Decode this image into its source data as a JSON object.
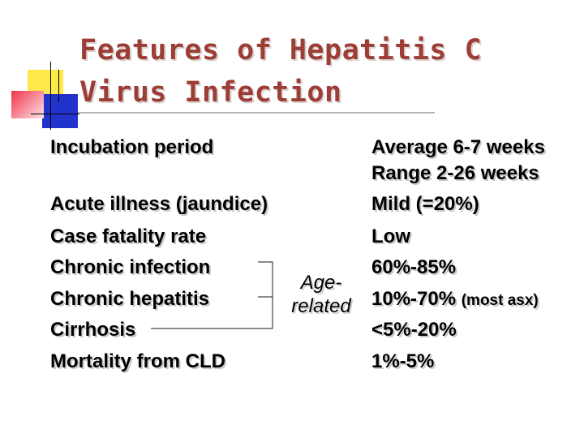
{
  "title_line1": "Features of Hepatitis C",
  "title_line2": "Virus Infection",
  "rows": [
    {
      "label": "Incubation period",
      "value": "Average 6-7 weeks"
    },
    {
      "label": "",
      "value": "Range 2-26 weeks"
    },
    {
      "label": "Acute illness (jaundice)",
      "value": "Mild (=20%)"
    },
    {
      "label": "Case fatality rate",
      "value": "Low"
    },
    {
      "label": "Chronic infection",
      "value": "60%-85%"
    },
    {
      "label": "Chronic hepatitis",
      "value": "10%-70%",
      "note": "(most asx)"
    },
    {
      "label": "Cirrhosis",
      "value": "<5%-20%"
    },
    {
      "label": "Mortality from CLD",
      "value": "1%-5%"
    }
  ],
  "bracket_label_line1": "Age-",
  "bracket_label_line2": "related",
  "colors": {
    "title": "#9c3d36",
    "accent_yellow": "#ffe94a",
    "accent_blue": "#2233cc",
    "accent_red": "#f2344a"
  }
}
